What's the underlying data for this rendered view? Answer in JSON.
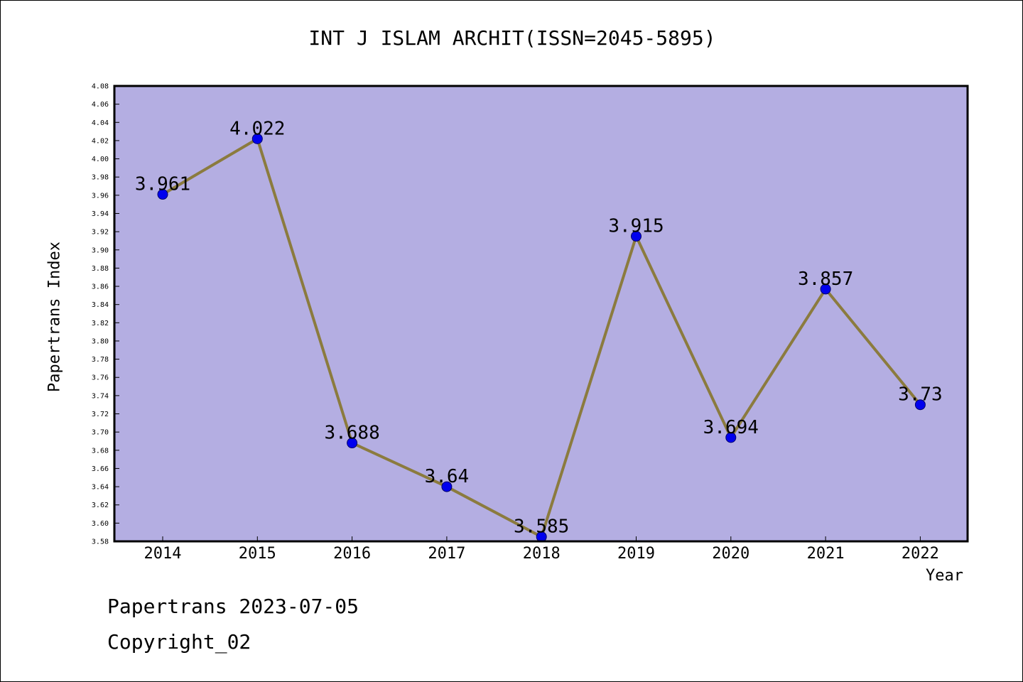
{
  "footer": {
    "line1": "Papertrans 2023-07-05",
    "line2": "Copyright_02"
  },
  "colors": {
    "plot_background": "#b4aee2",
    "line": "#8b7b3e",
    "marker_fill": "#0000ee",
    "marker_stroke": "#00006a",
    "axis": "#000000"
  },
  "chart_data": {
    "type": "line",
    "title": "INT J ISLAM ARCHIT(ISSN=2045-5895)",
    "xlabel": "Year",
    "ylabel": "Papertrans Index",
    "categories": [
      "2014",
      "2015",
      "2016",
      "2017",
      "2018",
      "2019",
      "2020",
      "2021",
      "2022"
    ],
    "series": [
      {
        "values": [
          3.961,
          4.022,
          3.688,
          3.64,
          3.585,
          3.915,
          3.694,
          3.857,
          3.73
        ],
        "labels": [
          "3.961",
          "4.022",
          "3.688",
          "3.64",
          "3.585",
          "3.915",
          "3.694",
          "3.857",
          "3.73"
        ]
      }
    ],
    "ylim": [
      3.58,
      4.08
    ],
    "ytick_step": 0.02,
    "grid": false,
    "legend": "none"
  }
}
